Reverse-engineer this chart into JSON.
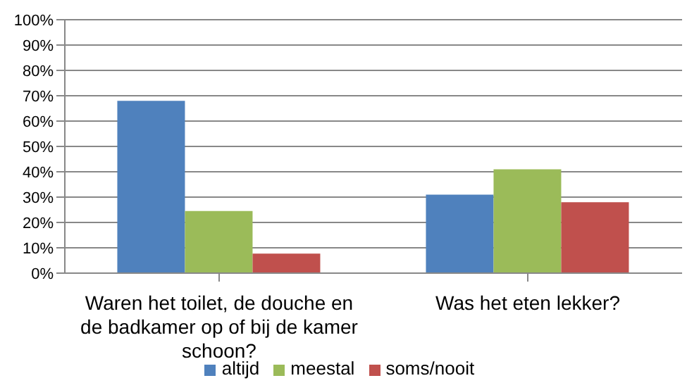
{
  "chart_data": {
    "type": "bar",
    "categories": [
      "Waren het toilet, de douche en de badkamer op of bij de kamer schoon?",
      "Was het eten lekker?"
    ],
    "series": [
      {
        "name": "altijd",
        "color": "#4f81bd",
        "values": [
          68,
          31
        ]
      },
      {
        "name": "meestal",
        "color": "#9bbb59",
        "values": [
          24.5,
          41
        ]
      },
      {
        "name": "soms/nooit",
        "color": "#c0504d",
        "values": [
          7.7,
          28
        ]
      }
    ],
    "ylim": [
      0,
      100
    ],
    "yticks": [
      {
        "value": 0,
        "label": "0%"
      },
      {
        "value": 10,
        "label": "10%"
      },
      {
        "value": 20,
        "label": "20%"
      },
      {
        "value": 30,
        "label": "30%"
      },
      {
        "value": 40,
        "label": "40%"
      },
      {
        "value": 50,
        "label": "50%"
      },
      {
        "value": 60,
        "label": "60%"
      },
      {
        "value": 70,
        "label": "70%"
      },
      {
        "value": 80,
        "label": "80%"
      },
      {
        "value": 90,
        "label": "90%"
      },
      {
        "value": 100,
        "label": "100%"
      }
    ],
    "grid": "y",
    "legend": "bottom"
  }
}
